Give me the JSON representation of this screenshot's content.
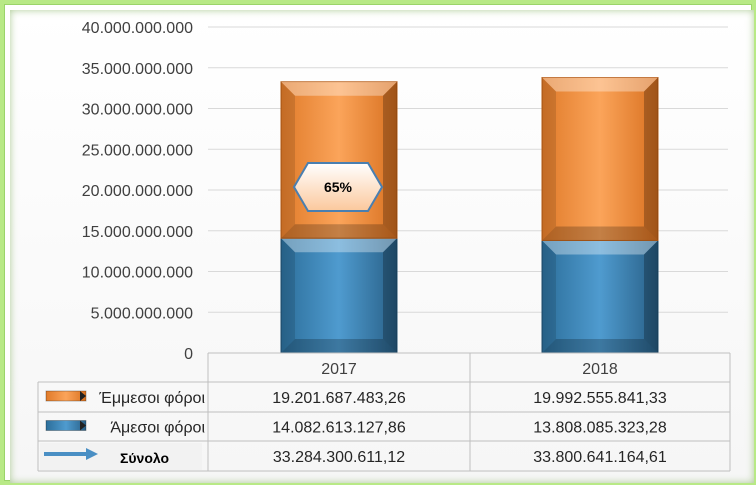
{
  "chart_data": {
    "type": "bar",
    "stacked": true,
    "categories": [
      "2017",
      "2018"
    ],
    "series": [
      {
        "name": "Άμεσοι φόροι",
        "values": [
          14082613127.86,
          13808085323.28
        ],
        "labels": [
          "14.082.613.127,86",
          "13.808.085.323,28"
        ],
        "color": "#3f87b8"
      },
      {
        "name": "Έμμεσοι φόροι",
        "values": [
          19201687483.26,
          19992555841.33
        ],
        "labels": [
          "19.201.687.483,26",
          "19.992.555.841,33"
        ],
        "color": "#f79646"
      }
    ],
    "total": {
      "name": "Σύνολο",
      "values": [
        33284300611.12,
        33800641164.61
      ],
      "labels": [
        "33.284.300.611,12",
        "33.800.641.164,61"
      ],
      "color": "#4a8fc4"
    },
    "yticks": [
      "0",
      "5.000.000.000",
      "10.000.000.000",
      "15.000.000.000",
      "20.000.000.000",
      "25.000.000.000",
      "30.000.000.000",
      "35.000.000.000",
      "40.000.000.000"
    ],
    "ylim": [
      0,
      40000000000
    ],
    "annotation": "65%",
    "data_table": true,
    "grid": true
  }
}
